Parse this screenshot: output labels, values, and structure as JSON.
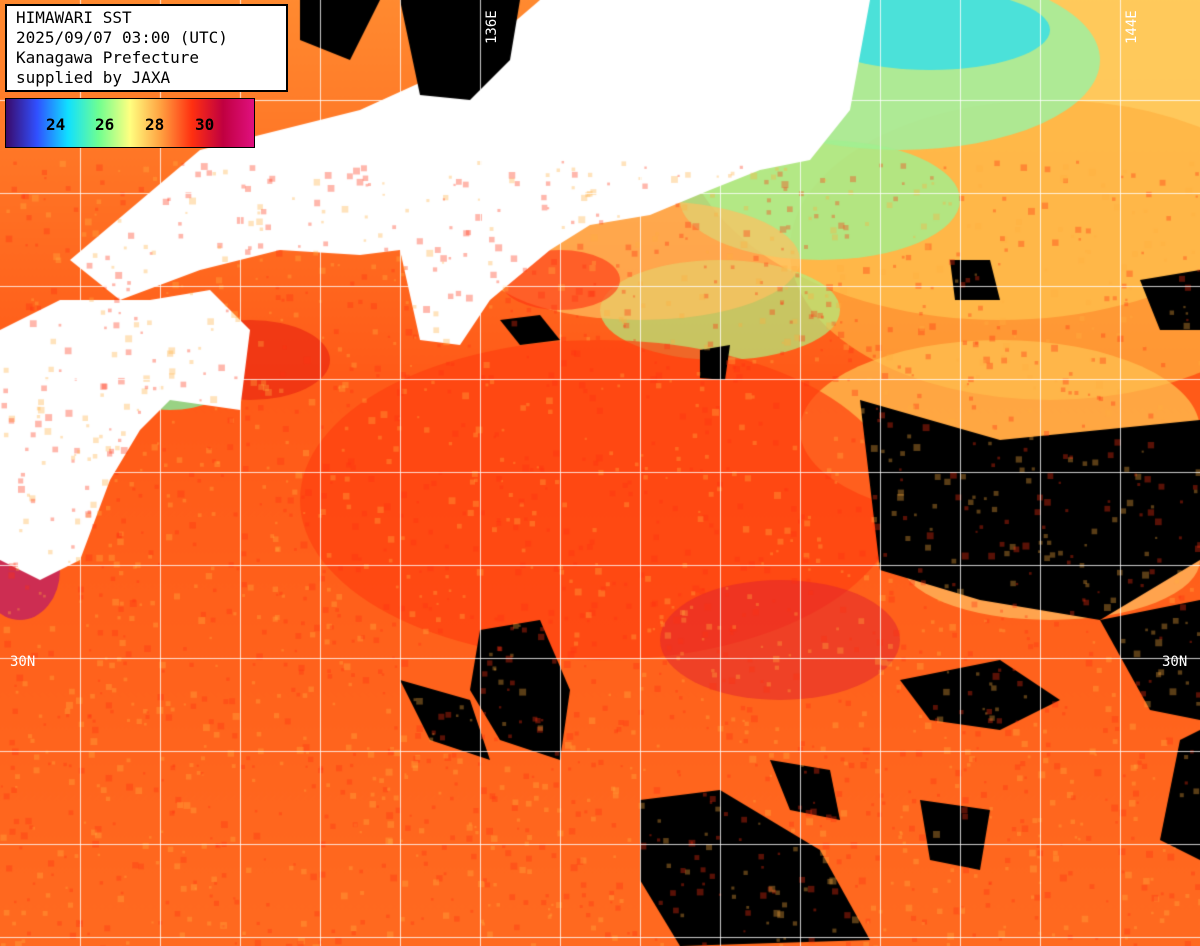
{
  "header": {
    "title": "HIMAWARI SST",
    "datetime": "2025/09/07 03:00 (UTC)",
    "region": "Kanagawa Prefecture",
    "credit": "supplied by JAXA"
  },
  "colorbar": {
    "ticks": [
      "24",
      "26",
      "28",
      "30"
    ],
    "colors": [
      "#3a0a6a",
      "#3050ff",
      "#10e0ff",
      "#70ff90",
      "#ffff80",
      "#ffa040",
      "#ff3010",
      "#c00040",
      "#e01080"
    ]
  },
  "grid_labels": {
    "lon_left": "136E",
    "lon_right": "144E",
    "lat_left": "30N",
    "lat_right": "30N"
  },
  "legend_colors": {
    "land": "#ffffff",
    "cloud": "#000000",
    "grid": "#ffffff"
  }
}
